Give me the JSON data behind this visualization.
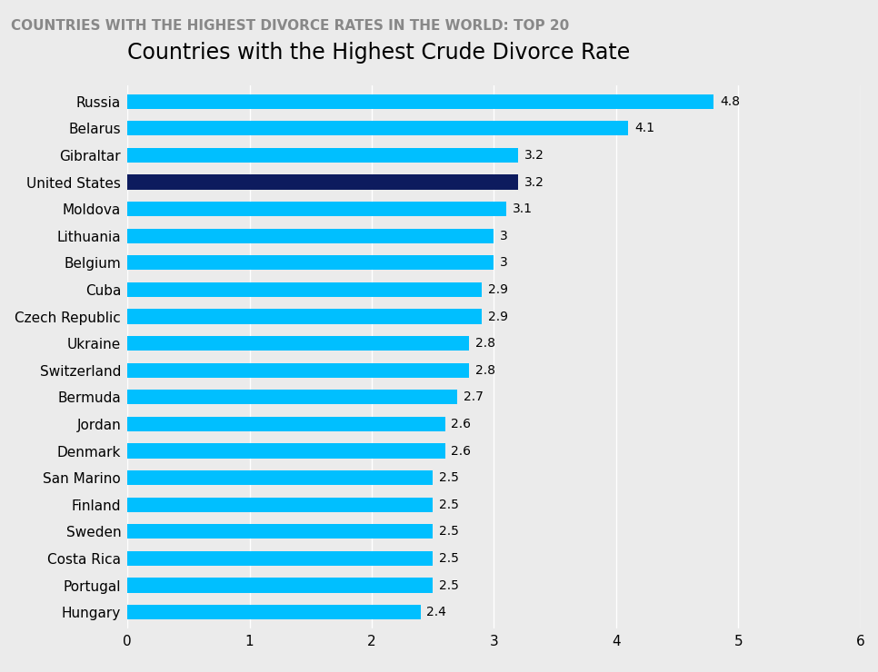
{
  "title": "Countries with the Highest Crude Divorce Rate",
  "header": "COUNTRIES WITH THE HIGHEST DIVORCE RATES IN THE WORLD: TOP 20",
  "header_bg": "#333333",
  "header_text_color": "#888888",
  "chart_bg": "#ebebeb",
  "bar_bg": "#ebebeb",
  "countries": [
    "Russia",
    "Belarus",
    "Gibraltar",
    "United States",
    "Moldova",
    "Lithuania",
    "Belgium",
    "Cuba",
    "Czech Republic",
    "Ukraine",
    "Switzerland",
    "Bermuda",
    "Jordan",
    "Denmark",
    "San Marino",
    "Finland",
    "Sweden",
    "Costa Rica",
    "Portugal",
    "Hungary"
  ],
  "values": [
    4.8,
    4.1,
    3.2,
    3.2,
    3.1,
    3.0,
    3.0,
    2.9,
    2.9,
    2.8,
    2.8,
    2.7,
    2.6,
    2.6,
    2.5,
    2.5,
    2.5,
    2.5,
    2.5,
    2.4
  ],
  "bar_colors": [
    "#00bfff",
    "#00bfff",
    "#00bfff",
    "#0d1b5e",
    "#00bfff",
    "#00bfff",
    "#00bfff",
    "#00bfff",
    "#00bfff",
    "#00bfff",
    "#00bfff",
    "#00bfff",
    "#00bfff",
    "#00bfff",
    "#00bfff",
    "#00bfff",
    "#00bfff",
    "#00bfff",
    "#00bfff",
    "#00bfff"
  ],
  "xlim": [
    0,
    6
  ],
  "xticks": [
    0,
    1,
    2,
    3,
    4,
    5,
    6
  ],
  "label_fontsize": 11,
  "title_fontsize": 17,
  "value_fontsize": 10,
  "header_fontsize": 11,
  "bar_height": 0.55
}
